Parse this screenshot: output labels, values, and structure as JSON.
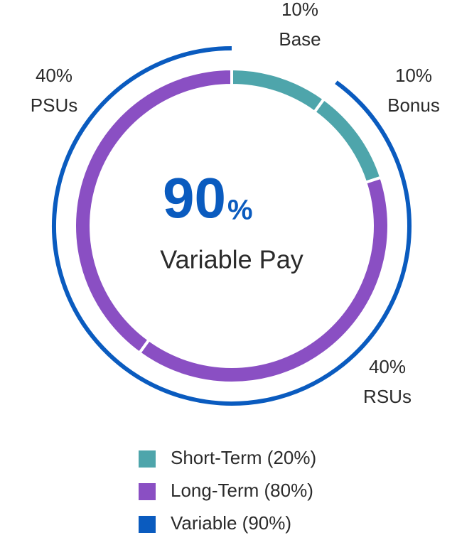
{
  "chart_data": {
    "type": "donut",
    "categories": [
      "Base",
      "Bonus",
      "RSUs",
      "PSUs"
    ],
    "values": [
      10,
      10,
      40,
      40
    ],
    "value_labels": [
      "10%",
      "10%",
      "40%",
      "40%"
    ],
    "colors": [
      "#4ea5ab",
      "#4ea5ab",
      "#8a4fc3",
      "#8a4fc3"
    ],
    "center": {
      "value": 90,
      "unit": "%",
      "caption": "Variable Pay",
      "color": "#0a5bbf"
    },
    "legend": [
      {
        "name": "Short-Term (20%)",
        "color": "#4ea5ab"
      },
      {
        "name": "Long-Term (80%)",
        "color": "#8a4fc3"
      },
      {
        "name": "Variable (90%)",
        "color": "#0a5bbf"
      }
    ]
  }
}
